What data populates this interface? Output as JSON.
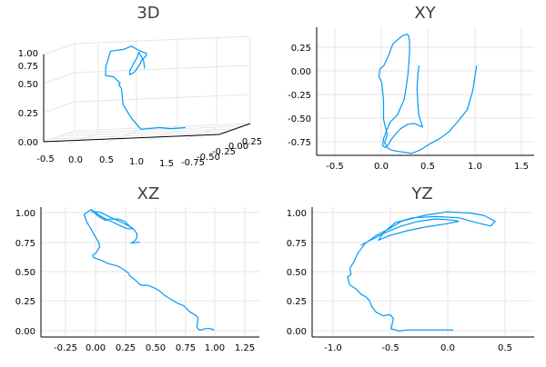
{
  "chart_data": [
    {
      "type": "line",
      "projection": "3d",
      "title": "3D",
      "xticks": [
        "-0.5",
        "0.0",
        "0.5",
        "1.0",
        "1.5"
      ],
      "yticks": [
        "-0.75",
        "-0.50",
        "-0.25",
        "0.00",
        "0.25"
      ],
      "zticks": [
        "0.00",
        "0.25",
        "0.50",
        "0.75",
        "1.00"
      ],
      "xlim": [
        -0.6,
        1.6
      ],
      "ylim": [
        -0.85,
        0.4
      ],
      "zlim": [
        -0.05,
        1.05
      ],
      "grid": true,
      "legend": "none",
      "color": "#009af9",
      "series": [
        {
          "x": [
            1.0,
            0.9,
            0.8,
            0.6,
            0.5,
            0.4,
            0.38,
            0.35,
            0.3,
            0.3,
            0.2,
            0.1,
            0.05,
            -0.01,
            0.04,
            0.12,
            0.21,
            0.31,
            0.36,
            0.39,
            0.44,
            0.45,
            0.44,
            0.41,
            0.38,
            0.36,
            0.34,
            0.33,
            0.31,
            0.31,
            0.4,
            0.45
          ],
          "y": [
            -0.3,
            -0.55,
            -0.68,
            -0.79,
            -0.85,
            -0.87,
            -0.83,
            -0.77,
            -0.72,
            -0.66,
            -0.61,
            -0.61,
            -0.44,
            -0.05,
            0.31,
            0.38,
            0.39,
            0.37,
            0.19,
            -0.09,
            -0.29,
            -0.43,
            -0.53,
            -0.56,
            -0.53,
            -0.47,
            -0.27,
            -0.07,
            0.05,
            0.06,
            -0.04,
            -0.16
          ],
          "z": [
            0.0,
            0.02,
            0.05,
            0.05,
            0.2,
            0.38,
            0.46,
            0.57,
            0.62,
            0.63,
            0.71,
            0.73,
            0.82,
            0.98,
            0.96,
            0.99,
            0.93,
            0.89,
            0.88,
            0.85,
            0.84,
            0.8,
            0.75,
            0.73,
            0.72,
            0.76,
            0.82,
            0.89,
            0.94,
            0.94,
            0.84,
            0.76
          ]
        }
      ]
    },
    {
      "type": "line",
      "title": "XY",
      "xticks": [
        "-0.5",
        "0.0",
        "0.5",
        "1.0",
        "1.5"
      ],
      "yticks": [
        "0.25",
        "0.00",
        "-0.25",
        "-0.50",
        "-0.75"
      ],
      "xlim": [
        -0.72,
        1.62
      ],
      "ylim": [
        -0.87,
        0.45
      ],
      "grid": true,
      "legend": "none",
      "color": "#009af9",
      "series": [
        {
          "x": [
            1.0,
            0.96,
            0.9,
            0.8,
            0.7,
            0.6,
            0.5,
            0.42,
            0.38,
            0.3,
            0.1,
            0.05,
            0.01,
            0.04,
            0.0,
            0.0,
            -0.02,
            -0.05,
            -0.04,
            0.0,
            0.05,
            0.1,
            0.2,
            0.25,
            0.27,
            0.28,
            0.28,
            0.27,
            0.26,
            0.24,
            0.22,
            0.2,
            0.15,
            0.08,
            0.06,
            0.03,
            0.0,
            -0.01,
            0.02,
            0.05,
            0.08,
            0.13,
            0.19,
            0.26,
            0.33,
            0.42,
            0.38,
            0.37,
            0.36,
            0.37,
            0.38
          ],
          "y": [
            0.05,
            -0.2,
            -0.4,
            -0.52,
            -0.63,
            -0.7,
            -0.75,
            -0.8,
            -0.82,
            -0.85,
            -0.82,
            -0.8,
            -0.74,
            -0.66,
            -0.5,
            -0.3,
            -0.12,
            -0.06,
            0.02,
            0.05,
            0.15,
            0.28,
            0.36,
            0.38,
            0.36,
            0.3,
            0.2,
            0.06,
            -0.05,
            -0.18,
            -0.3,
            -0.34,
            -0.45,
            -0.52,
            -0.55,
            -0.62,
            -0.7,
            -0.77,
            -0.79,
            -0.76,
            -0.71,
            -0.65,
            -0.59,
            -0.55,
            -0.54,
            -0.58,
            -0.46,
            -0.36,
            -0.18,
            -0.02,
            0.05
          ]
        }
      ]
    },
    {
      "type": "line",
      "title": "XZ",
      "xticks": [
        "-0.25",
        "0.00",
        "0.25",
        "0.50",
        "0.75",
        "1.00",
        "1.25"
      ],
      "yticks": [
        "1.00",
        "0.75",
        "0.50",
        "0.25",
        "0.00"
      ],
      "xlim": [
        -0.44,
        1.38
      ],
      "ylim": [
        -0.06,
        1.02
      ],
      "grid": true,
      "legend": "none",
      "color": "#009af9",
      "series": [
        {
          "x": [
            1.0,
            0.97,
            0.93,
            0.9,
            0.88,
            0.86,
            0.87,
            0.85,
            0.8,
            0.75,
            0.7,
            0.6,
            0.54,
            0.5,
            0.45,
            0.4,
            0.38,
            0.35,
            0.3,
            0.29,
            0.25,
            0.2,
            0.12,
            0.06,
            0.0,
            -0.01,
            0.02,
            0.05,
            0.04,
            0.01,
            -0.03,
            -0.06,
            -0.08,
            -0.05,
            -0.02,
            0.05,
            0.1,
            0.15,
            0.21,
            0.28,
            0.33,
            0.3,
            0.26,
            0.21,
            0.17,
            0.13,
            0.1,
            0.06,
            0.03,
            0.0,
            -0.02,
            0.05,
            0.15,
            0.22,
            0.28,
            0.33,
            0.36,
            0.36,
            0.35,
            0.33,
            0.31,
            0.38
          ],
          "y": [
            0.0,
            0.01,
            0.01,
            0.0,
            0.0,
            0.02,
            0.1,
            0.12,
            0.15,
            0.2,
            0.22,
            0.28,
            0.33,
            0.35,
            0.37,
            0.37,
            0.38,
            0.41,
            0.45,
            0.47,
            0.5,
            0.53,
            0.55,
            0.58,
            0.6,
            0.62,
            0.64,
            0.69,
            0.73,
            0.78,
            0.85,
            0.9,
            0.96,
            0.98,
            1.0,
            0.95,
            0.92,
            0.9,
            0.87,
            0.84,
            0.84,
            0.86,
            0.9,
            0.92,
            0.92,
            0.92,
            0.91,
            0.93,
            0.95,
            0.98,
            0.98,
            0.98,
            0.93,
            0.9,
            0.87,
            0.84,
            0.8,
            0.77,
            0.75,
            0.73,
            0.72,
            0.73
          ]
        }
      ]
    },
    {
      "type": "line",
      "title": "YZ",
      "xticks": [
        "-1.0",
        "-0.5",
        "0.0",
        "0.5"
      ],
      "yticks": [
        "1.00",
        "0.75",
        "0.50",
        "0.25",
        "0.00"
      ],
      "xlim": [
        -1.18,
        0.76
      ],
      "ylim": [
        -0.06,
        1.04
      ],
      "grid": true,
      "legend": "none",
      "color": "#009af9",
      "series": [
        {
          "x": [
            0.05,
            0.0,
            -0.15,
            -0.28,
            -0.35,
            -0.42,
            -0.45,
            -0.49,
            -0.48,
            -0.47,
            -0.5,
            -0.56,
            -0.62,
            -0.66,
            -0.68,
            -0.71,
            -0.75,
            -0.8,
            -0.85,
            -0.86,
            -0.87,
            -0.84,
            -0.85,
            -0.82,
            -0.78,
            -0.72,
            -0.62,
            -0.5,
            -0.4,
            -0.2,
            0.0,
            0.2,
            0.32,
            0.42,
            0.38,
            0.25,
            0.1,
            -0.1,
            -0.3,
            -0.45,
            -0.55,
            -0.6,
            -0.5,
            -0.35,
            -0.2,
            0.0,
            0.1,
            0.05,
            -0.1,
            -0.25,
            -0.4,
            -0.55,
            -0.75
          ],
          "y": [
            0.0,
            0.0,
            0.0,
            0.0,
            0.0,
            -0.01,
            0.0,
            0.01,
            0.05,
            0.1,
            0.13,
            0.12,
            0.15,
            0.2,
            0.25,
            0.28,
            0.3,
            0.35,
            0.38,
            0.41,
            0.45,
            0.47,
            0.52,
            0.57,
            0.65,
            0.73,
            0.8,
            0.86,
            0.92,
            0.97,
            1.0,
            0.99,
            0.97,
            0.92,
            0.88,
            0.91,
            0.95,
            0.96,
            0.95,
            0.91,
            0.83,
            0.76,
            0.8,
            0.84,
            0.87,
            0.9,
            0.92,
            0.93,
            0.94,
            0.92,
            0.88,
            0.82,
            0.72
          ]
        }
      ]
    }
  ]
}
